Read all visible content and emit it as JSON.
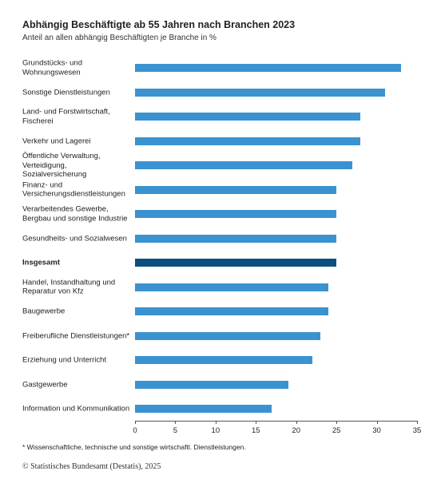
{
  "chart_data": {
    "type": "bar",
    "orientation": "horizontal",
    "title": "Abhängig Beschäftigte ab 55 Jahren nach Branchen 2023",
    "subtitle": "Anteil an allen abhängig Beschäftigten je Branche in %",
    "categories": [
      "Grundstücks- und Wohnungswesen",
      "Sonstige Dienstleistungen",
      "Land- und Forstwirtschaft, Fischerei",
      "Verkehr und Lagerei",
      "Öffentliche Verwaltung, Verteidigung, Sozialversicherung",
      "Finanz- und Versicherungsdienstleistungen",
      "Verarbeitendes Gewerbe, Bergbau und sonstige Industrie",
      "Gesundheits- und Sozialwesen",
      "Insgesamt",
      "Handel, Instandhaltung und Reparatur von Kfz",
      "Baugewerbe",
      "Freiberufliche Dienstleistungen*",
      "Erziehung und Unterricht",
      "Gastgewerbe",
      "Information und Kommunikation"
    ],
    "values": [
      33,
      31,
      28,
      28,
      27,
      25,
      25,
      25,
      25,
      24,
      24,
      23,
      22,
      19,
      17
    ],
    "color": "#3a93d0",
    "colors": [
      "#3a93d0",
      "#3a93d0",
      "#3a93d0",
      "#3a93d0",
      "#3a93d0",
      "#3a93d0",
      "#3a93d0",
      "#3a93d0",
      "#0b4f80",
      "#3a93d0",
      "#3a93d0",
      "#3a93d0",
      "#3a93d0",
      "#3a93d0",
      "#3a93d0"
    ],
    "xlim": [
      0,
      35
    ],
    "xticks": [
      0,
      5,
      10,
      15,
      20,
      25,
      30,
      35
    ],
    "footnote": "* Wissenschaftliche, technische und sonstige wirtschaftl. Dienstleistungen.",
    "source": "© Statistisches Bundesamt (Destatis), 2025"
  }
}
